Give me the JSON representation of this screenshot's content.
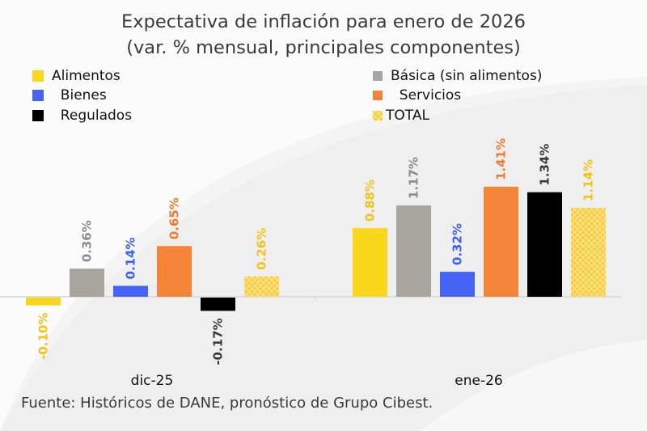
{
  "chart_data": {
    "type": "bar",
    "title": "Expectativa de inflación para enero de 2026",
    "subtitle": "(var. % mensual, principales componentes)",
    "xlabel": "",
    "ylabel": "",
    "categories": [
      "dic-25",
      "ene-26"
    ],
    "series": [
      {
        "name": "Alimentos",
        "color": "#f9d71c",
        "label_color": "#f2c318",
        "values": [
          -0.1,
          0.88
        ],
        "labels": [
          "-0.10%",
          "0.88%"
        ]
      },
      {
        "name": "Básica (sin alimentos)",
        "color": "#a8a49e",
        "label_color": "#8c8c8c",
        "values": [
          0.36,
          1.17
        ],
        "labels": [
          "0.36%",
          "1.17%"
        ]
      },
      {
        "name": "Bienes",
        "color": "#4563f5",
        "label_color": "#3d5cf0",
        "values": [
          0.14,
          0.32
        ],
        "labels": [
          "0.14%",
          "0.32%"
        ]
      },
      {
        "name": "Servicios",
        "color": "#f48437",
        "label_color": "#f07a2e",
        "values": [
          0.65,
          1.41
        ],
        "labels": [
          "0.65%",
          "1.41%"
        ]
      },
      {
        "name": "Regulados",
        "color": "#000000",
        "label_color": "#3a3a3a",
        "values": [
          -0.17,
          1.34
        ],
        "labels": [
          "-0.17%",
          "1.34%"
        ]
      },
      {
        "name": "TOTAL",
        "color": "#f8cc3a",
        "label_color": "#f2c318",
        "pattern": "lattice",
        "values": [
          0.26,
          1.14
        ],
        "labels": [
          "0.26%",
          "1.14%"
        ]
      }
    ],
    "ylim": [
      -0.3,
      1.6
    ],
    "grid": false,
    "legend_position": "top",
    "value_labels_rotated": true
  },
  "legend": [
    {
      "label": "Alimentos",
      "swatch": "#f9d71c"
    },
    {
      "label": "Básica (sin alimentos)",
      "swatch": "#a8a49e"
    },
    {
      "label": "  Bienes",
      "swatch": "#4563f5"
    },
    {
      "label": "  Servicios",
      "swatch": "#f48437"
    },
    {
      "label": "  Regulados",
      "swatch": "#000000"
    },
    {
      "label": "TOTAL",
      "swatch": "#f8cc3a"
    }
  ],
  "source": "Fuente: Históricos de DANE, pronóstico de Grupo Cibest."
}
